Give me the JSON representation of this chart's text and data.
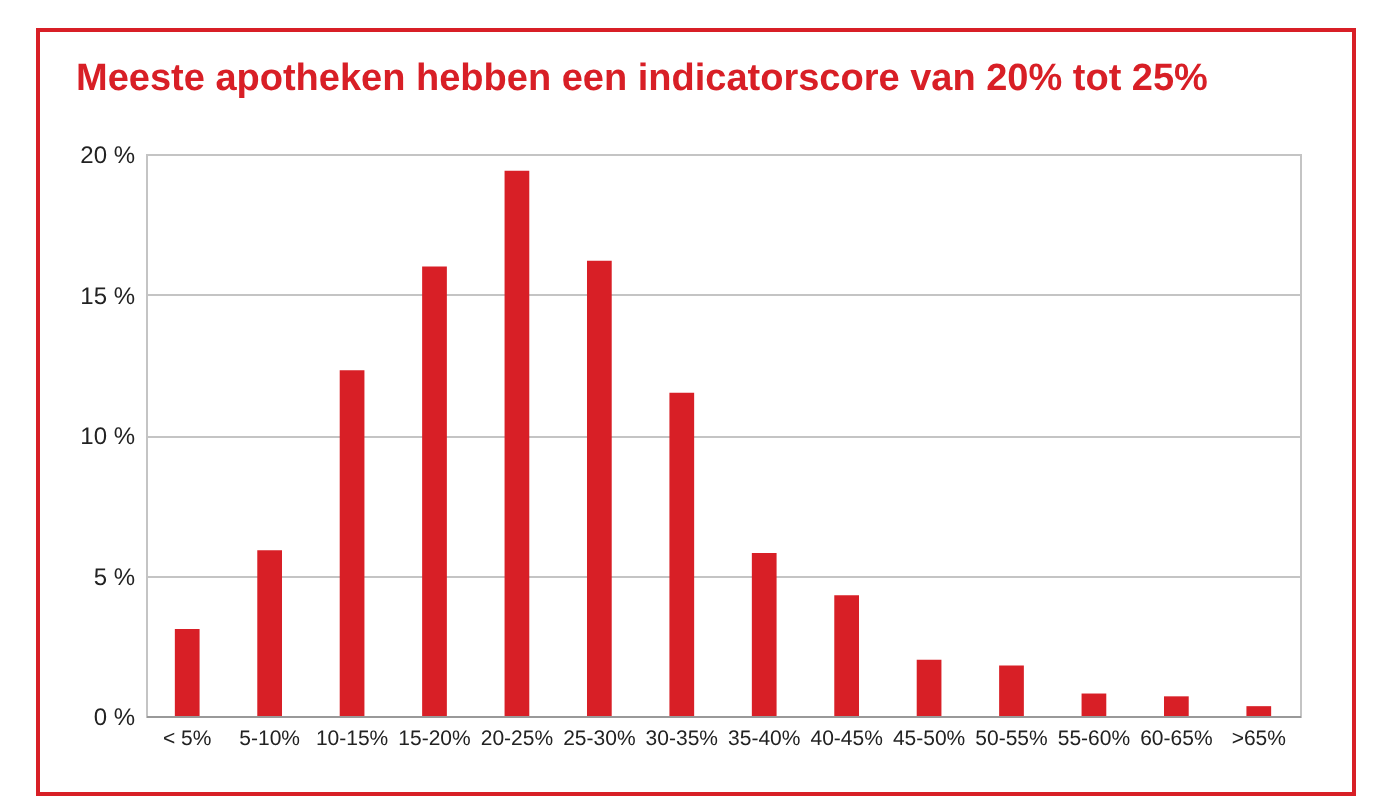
{
  "chart_data": {
    "type": "bar",
    "title": "Meeste apotheken hebben een indicatorscore van 20% tot 25%",
    "categories": [
      "< 5%",
      "5-10%",
      "10-15%",
      "15-20%",
      "20-25%",
      "25-30%",
      "30-35%",
      "35-40%",
      "40-45%",
      "45-50%",
      "50-55%",
      "55-60%",
      "60-65%",
      ">65%"
    ],
    "values": [
      3.1,
      5.9,
      12.3,
      16.0,
      19.4,
      16.2,
      11.5,
      5.8,
      4.3,
      2.0,
      1.8,
      0.8,
      0.7,
      0.35
    ],
    "color": "#d81f26",
    "ylim": [
      0,
      20
    ],
    "yticks": [
      {
        "value": 0,
        "label": "0 %"
      },
      {
        "value": 5,
        "label": "5 %"
      },
      {
        "value": 10,
        "label": "10 %"
      },
      {
        "value": 15,
        "label": "15 %"
      },
      {
        "value": 20,
        "label": "20 %"
      }
    ],
    "grid": "y"
  }
}
